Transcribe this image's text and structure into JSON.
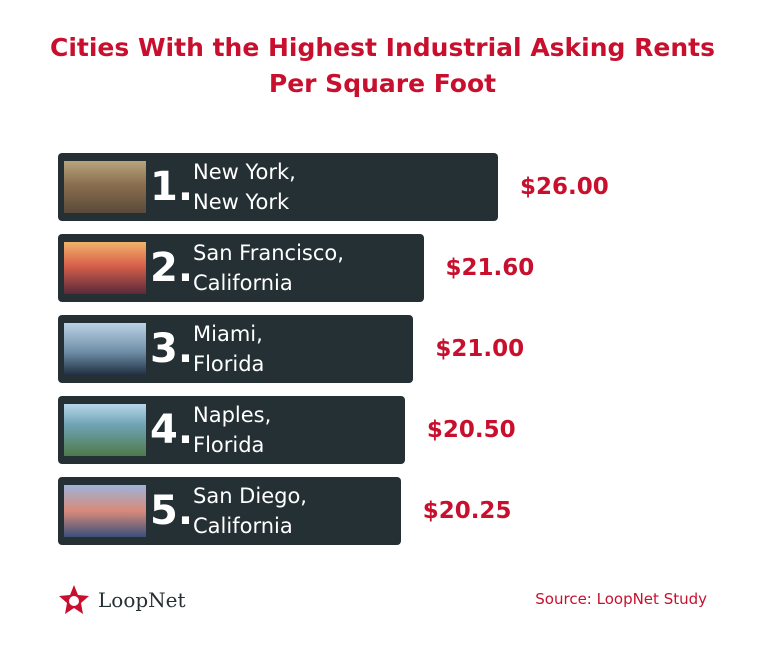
{
  "chart_data": {
    "type": "bar",
    "title": "Cities With the Highest Industrial Asking Rents Per Square Foot",
    "ranks": [
      "1.",
      "2.",
      "3.",
      "4.",
      "5."
    ],
    "categories": [
      "New York,\nNew York",
      "San Francisco,\nCalifornia",
      "Miami,\nFlorida",
      "Naples,\nFlorida",
      "San Diego,\nCalifornia"
    ],
    "values": [
      26.0,
      21.6,
      21.0,
      20.5,
      20.25
    ],
    "value_labels": [
      "$26.00",
      "$21.60",
      "$21.00",
      "$20.50",
      "$20.25"
    ],
    "color": "#253035",
    "source": "Source: LoopNet Study",
    "logo": "LoopNet"
  }
}
